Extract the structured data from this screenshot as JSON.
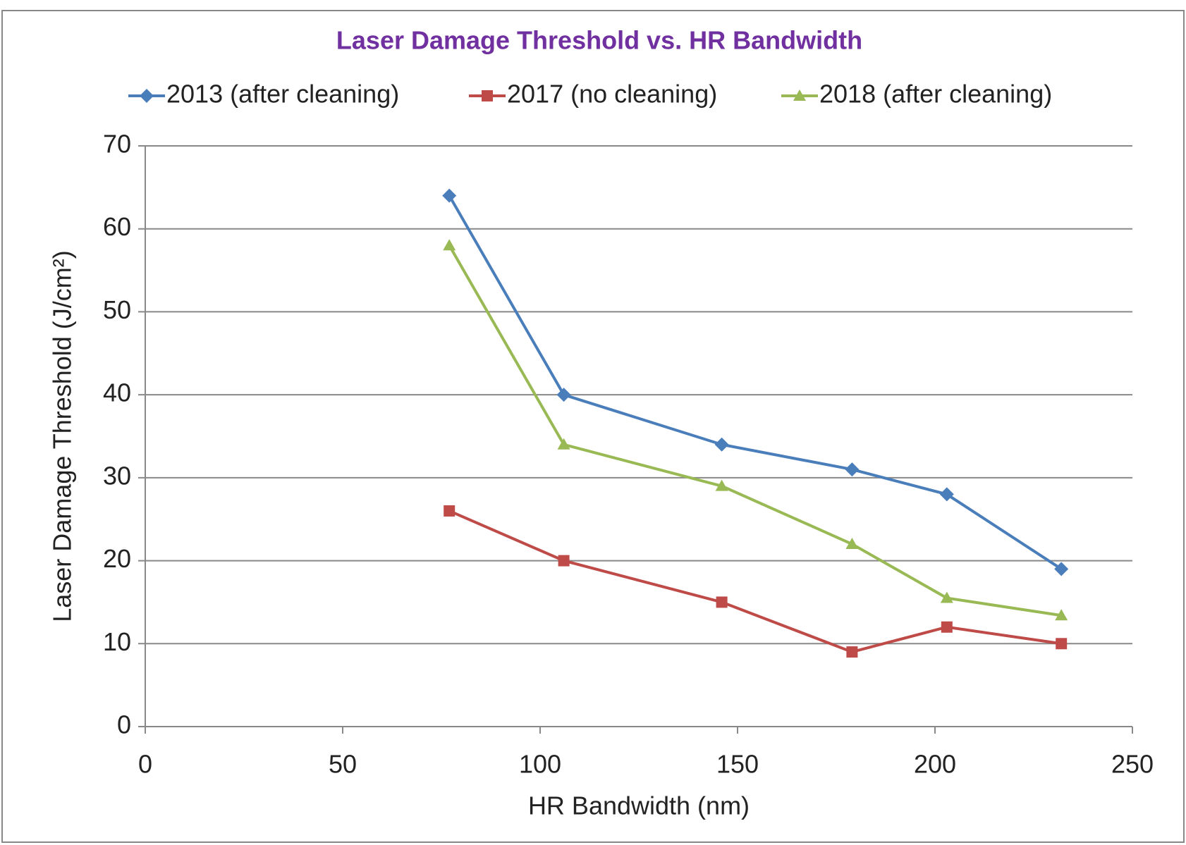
{
  "chart_data": {
    "type": "line",
    "title": "Laser Damage Threshold vs. HR Bandwidth",
    "xlabel": "HR Bandwidth (nm)",
    "ylabel": "Laser Damage Threshold (J/cm²)",
    "x": [
      77,
      106,
      146,
      179,
      203,
      232
    ],
    "series": [
      {
        "name": "2013 (after cleaning)",
        "color": "#4a7ebb",
        "marker": "diamond",
        "values": [
          64,
          40,
          34,
          31,
          28,
          19
        ]
      },
      {
        "name": "2017 (no cleaning)",
        "color": "#be4b48",
        "marker": "square",
        "values": [
          26,
          20,
          15,
          9,
          12,
          10
        ]
      },
      {
        "name": "2018 (after cleaning)",
        "color": "#98b954",
        "marker": "triangle",
        "values": [
          58,
          34,
          29,
          22,
          15.5,
          13.4
        ]
      }
    ],
    "xlim": [
      0,
      250
    ],
    "xticks": [
      0,
      50,
      100,
      150,
      200,
      250
    ],
    "ylim": [
      0,
      70
    ],
    "yticks": [
      0,
      10,
      20,
      30,
      40,
      50,
      60,
      70
    ],
    "grid": true,
    "legend": "top"
  }
}
